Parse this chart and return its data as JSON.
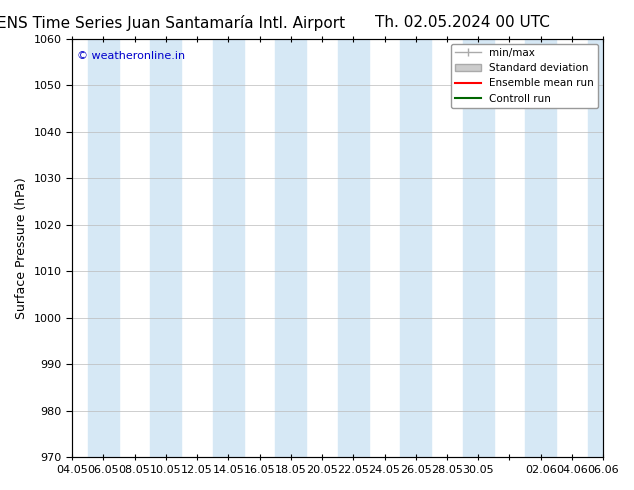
{
  "title_left": "ENS Time Series Juan Santamaría Intl. Airport",
  "title_right": "Th. 02.05.2024 00 UTC",
  "ylabel": "Surface Pressure (hPa)",
  "ylim": [
    970,
    1060
  ],
  "yticks": [
    970,
    980,
    990,
    1000,
    1010,
    1020,
    1030,
    1040,
    1050,
    1060
  ],
  "xtick_labels": [
    "04.05",
    "06.05",
    "08.05",
    "10.05",
    "12.05",
    "14.05",
    "16.05",
    "18.05",
    "20.05",
    "22.05",
    "24.05",
    "26.05",
    "28.05",
    "30.05",
    "",
    "02.06",
    "04.06",
    "06.06"
  ],
  "watermark": "© weatheronline.in",
  "watermark_color": "#0000cc",
  "legend_entries": [
    "min/max",
    "Standard deviation",
    "Ensemble mean run",
    "Controll run"
  ],
  "legend_colors": [
    "#aaaaaa",
    "#cccccc",
    "#ff0000",
    "#006600"
  ],
  "bg_color": "#ffffff",
  "plot_bg_color": "#ffffff",
  "band_color": "#d6e8f5",
  "band_indices": [
    1,
    3,
    5,
    7,
    9,
    11,
    13,
    15,
    17
  ],
  "grid_color": "#bbbbbb",
  "title_fontsize": 11,
  "axis_label_fontsize": 9,
  "tick_fontsize": 8
}
